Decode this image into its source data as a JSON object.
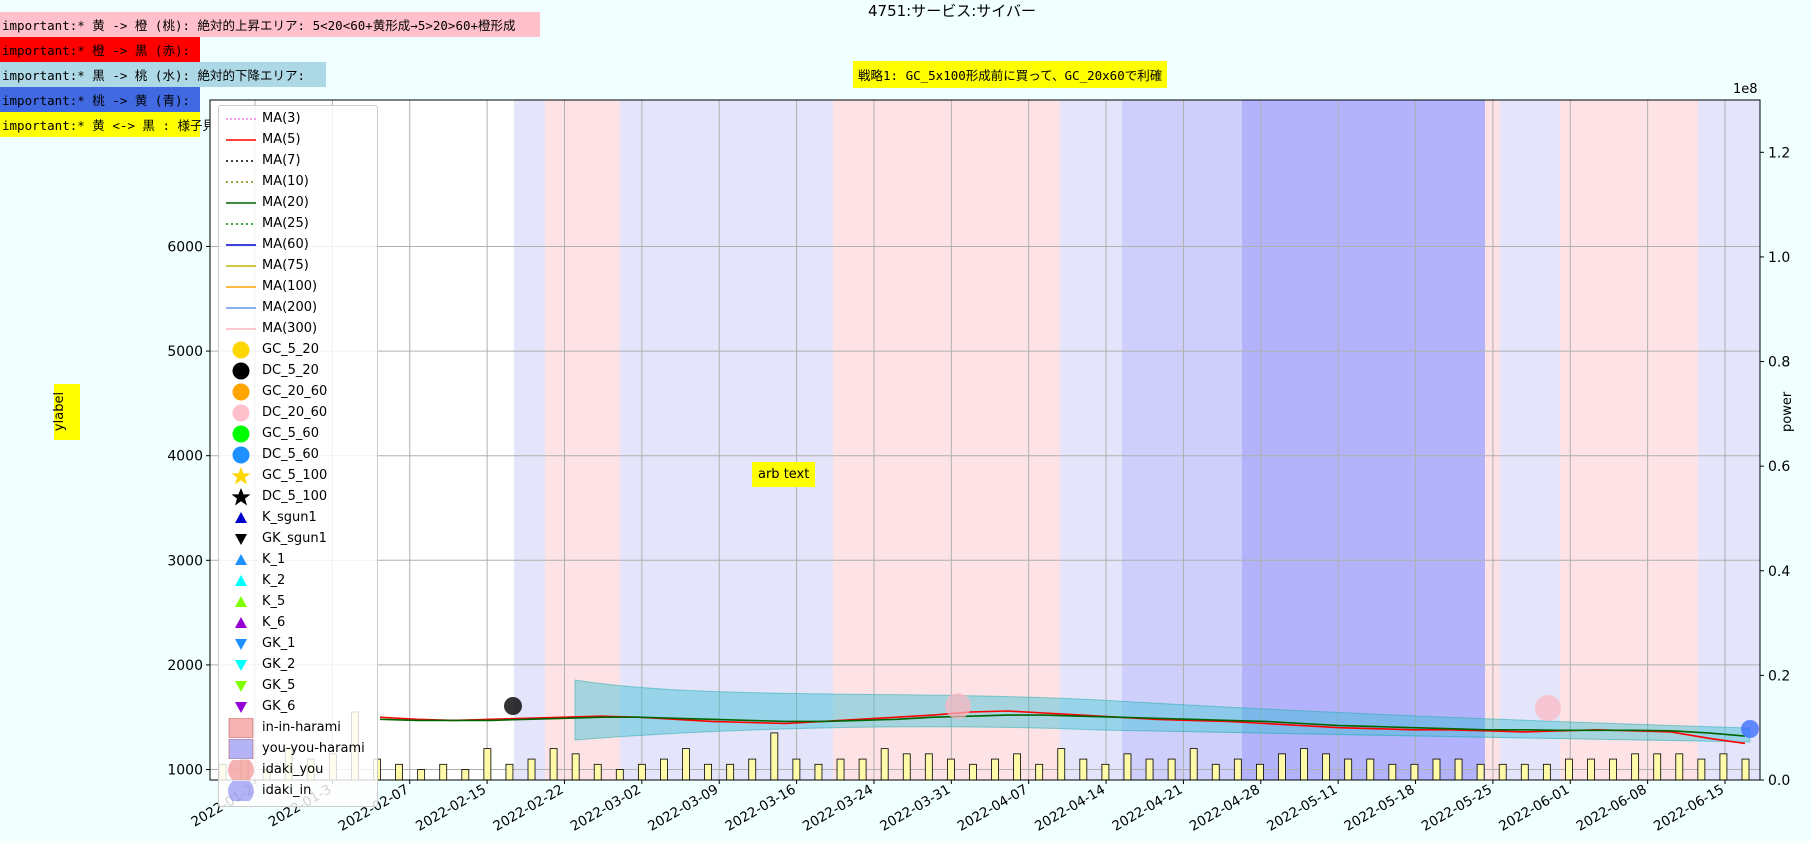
{
  "chart_data": {
    "type": "line",
    "title": "4751:サービス:サイバー",
    "ylabel_left": "ylabel",
    "ylabel_right": "power",
    "right_axis_multiplier": "1e8",
    "annotation_center": "戦略1: GC_5x100形成前に買って、GC_20x60で利確",
    "annotation_arb": "arb text",
    "notes": [
      {
        "text": "important:* 黄 -> 橙 (桃): 絶対的上昇エリア: 5<20<60+黄形成→5>20>60+橙形成",
        "color": "#ffc0cb"
      },
      {
        "text": "important:* 橙 -> 黒 (赤):",
        "color": "#ff0000"
      },
      {
        "text": "important:* 黒 -> 桃 (水): 絶対的下降エリア:",
        "color": "#add8e6"
      },
      {
        "text": "important:* 桃 -> 黄 (青):",
        "color": "#4169e1"
      },
      {
        "text": "important:* 黄 <-> 黒 : 様子見:",
        "color": "#ffff00"
      }
    ],
    "y_ticks_left": [
      "1000",
      "2000",
      "3000",
      "4000",
      "5000",
      "6000"
    ],
    "y_ticks_right": [
      "0.0",
      "0.2",
      "0.4",
      "0.6",
      "0.8",
      "1.0",
      "1.2"
    ],
    "x_ticks": [
      "2022-01-2",
      "2022-01-3",
      "2022-02-07",
      "2022-02-15",
      "2022-02-22",
      "2022-03-02",
      "2022-03-09",
      "2022-03-16",
      "2022-03-24",
      "2022-03-31",
      "2022-04-07",
      "2022-04-14",
      "2022-04-21",
      "2022-04-28",
      "2022-05-11",
      "2022-05-18",
      "2022-05-25",
      "2022-06-01",
      "2022-06-08",
      "2022-06-15"
    ],
    "ylim_left": [
      900,
      7400
    ],
    "ylim_right": [
      0,
      1.3
    ],
    "legend": [
      {
        "label": "MA(3)",
        "kind": "line",
        "color": "#ee82ee",
        "dash": "2,2"
      },
      {
        "label": "MA(5)",
        "kind": "line",
        "color": "#ff0000",
        "dash": ""
      },
      {
        "label": "MA(7)",
        "kind": "line",
        "color": "#000000",
        "dash": "2,3"
      },
      {
        "label": "MA(10)",
        "kind": "line",
        "color": "#808000",
        "dash": "2,3"
      },
      {
        "label": "MA(20)",
        "kind": "line",
        "color": "#006400",
        "dash": ""
      },
      {
        "label": "MA(25)",
        "kind": "line",
        "color": "#008000",
        "dash": "2,3"
      },
      {
        "label": "MA(60)",
        "kind": "line",
        "color": "#0000cd",
        "dash": ""
      },
      {
        "label": "MA(75)",
        "kind": "line",
        "color": "#bdb700",
        "dash": ""
      },
      {
        "label": "MA(100)",
        "kind": "line",
        "color": "#ffa500",
        "dash": ""
      },
      {
        "label": "MA(200)",
        "kind": "line",
        "color": "#6495ed",
        "dash": ""
      },
      {
        "label": "MA(300)",
        "kind": "line",
        "color": "#ffb6c1",
        "dash": ""
      },
      {
        "label": "GC_5_20",
        "kind": "circle",
        "color": "#ffd700"
      },
      {
        "label": "DC_5_20",
        "kind": "circle",
        "color": "#000000"
      },
      {
        "label": "GC_20_60",
        "kind": "circle",
        "color": "#ffa500"
      },
      {
        "label": "DC_20_60",
        "kind": "circle",
        "color": "#ffc0cb"
      },
      {
        "label": "GC_5_60",
        "kind": "circle",
        "color": "#00ff00"
      },
      {
        "label": "DC_5_60",
        "kind": "circle",
        "color": "#1e90ff"
      },
      {
        "label": "GC_5_100",
        "kind": "star",
        "color": "#ffd700"
      },
      {
        "label": "DC_5_100",
        "kind": "star",
        "color": "#000000"
      },
      {
        "label": "K_sgun1",
        "kind": "tri-up",
        "color": "#0000cd"
      },
      {
        "label": "GK_sgun1",
        "kind": "tri-down",
        "color": "#000000"
      },
      {
        "label": "K_1",
        "kind": "tri-up",
        "color": "#1e90ff"
      },
      {
        "label": "K_2",
        "kind": "tri-up",
        "color": "#00ffff"
      },
      {
        "label": "K_5",
        "kind": "tri-up",
        "color": "#7fff00"
      },
      {
        "label": "K_6",
        "kind": "tri-up",
        "color": "#9400d3"
      },
      {
        "label": "GK_1",
        "kind": "tri-down",
        "color": "#1e90ff"
      },
      {
        "label": "GK_2",
        "kind": "tri-down",
        "color": "#00ffff"
      },
      {
        "label": "GK_5",
        "kind": "tri-down",
        "color": "#7fff00"
      },
      {
        "label": "GK_6",
        "kind": "tri-down",
        "color": "#9400d3"
      },
      {
        "label": "in-in-harami",
        "kind": "square",
        "color": "#f08080"
      },
      {
        "label": "you-you-harami",
        "kind": "square",
        "color": "#8080f0"
      },
      {
        "label": "idaki_you",
        "kind": "circle-big",
        "color": "#f08080"
      },
      {
        "label": "idaki_in",
        "kind": "circle-big",
        "color": "#8080f0"
      }
    ],
    "series": [
      {
        "name": "MA(5)",
        "values": [
          1500,
          1480,
          1470,
          1480,
          1490,
          1500,
          1510,
          1500,
          1480,
          1460,
          1450,
          1440,
          1460,
          1480,
          1500,
          1520,
          1550,
          1560,
          1540,
          1520,
          1500,
          1480,
          1470,
          1460,
          1440,
          1420,
          1400,
          1390,
          1380,
          1380,
          1370,
          1360,
          1370,
          1380,
          1370,
          1360,
          1300,
          1250
        ]
      },
      {
        "name": "MA(20)",
        "values": [
          1480,
          1470,
          1470,
          1470,
          1480,
          1490,
          1500,
          1500,
          1490,
          1480,
          1470,
          1460,
          1460,
          1470,
          1480,
          1500,
          1510,
          1520,
          1520,
          1510,
          1500,
          1490,
          1480,
          1470,
          1460,
          1440,
          1420,
          1410,
          1400,
          1390,
          1380,
          1380,
          1375,
          1375,
          1375,
          1370,
          1350,
          1320
        ]
      }
    ],
    "volume": [
      0.03,
      0.04,
      0.02,
      0.06,
      0.04,
      0.05,
      0.13,
      0.04,
      0.03,
      0.02,
      0.03,
      0.02,
      0.06,
      0.03,
      0.04,
      0.06,
      0.05,
      0.03,
      0.02,
      0.03,
      0.04,
      0.06,
      0.03,
      0.03,
      0.04,
      0.09,
      0.04,
      0.03,
      0.04,
      0.04,
      0.06,
      0.05,
      0.05,
      0.04,
      0.03,
      0.04,
      0.05,
      0.03,
      0.06,
      0.04,
      0.03,
      0.05,
      0.04,
      0.04,
      0.06,
      0.03,
      0.04,
      0.03,
      0.05,
      0.06,
      0.05,
      0.04,
      0.04,
      0.03,
      0.03,
      0.04,
      0.04,
      0.03,
      0.03,
      0.03,
      0.03,
      0.04,
      0.04,
      0.04,
      0.05,
      0.05,
      0.05,
      0.04,
      0.05,
      0.04
    ]
  }
}
